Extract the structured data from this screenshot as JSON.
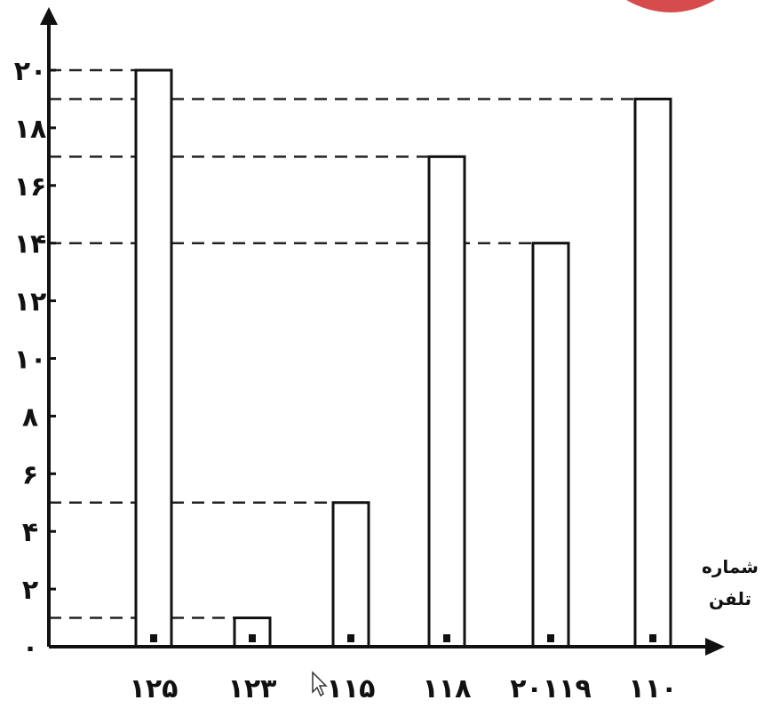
{
  "chart_data": {
    "type": "bar",
    "categories": [
      "۱۲۵",
      "۱۲۳",
      "۱۱۵",
      "۱۱۸",
      "۲۰۱۱۹",
      "۱۱۰"
    ],
    "values": [
      20,
      1,
      5,
      17,
      14,
      19
    ],
    "title": "",
    "xlabel_lines": [
      "شماره",
      "تلفن"
    ],
    "ylabel": "",
    "ylim": [
      0,
      20
    ],
    "y_ticks": [
      0,
      2,
      4,
      6,
      8,
      10,
      12,
      14,
      16,
      18,
      20
    ],
    "y_tick_labels": [
      "۰",
      "۲",
      "۴",
      "۶",
      "۸",
      "۱۰",
      "۱۲",
      "۱۴",
      "۱۶",
      "۱۸",
      "۲۰"
    ],
    "guide_lines": "dashed, from y-axis to bar top",
    "grid": false,
    "legend": "none",
    "colors": {
      "bar_fill": "#ffffff",
      "bar_stroke": "#111111",
      "axis": "#111111",
      "accent_blob": "#d64c4c"
    }
  }
}
